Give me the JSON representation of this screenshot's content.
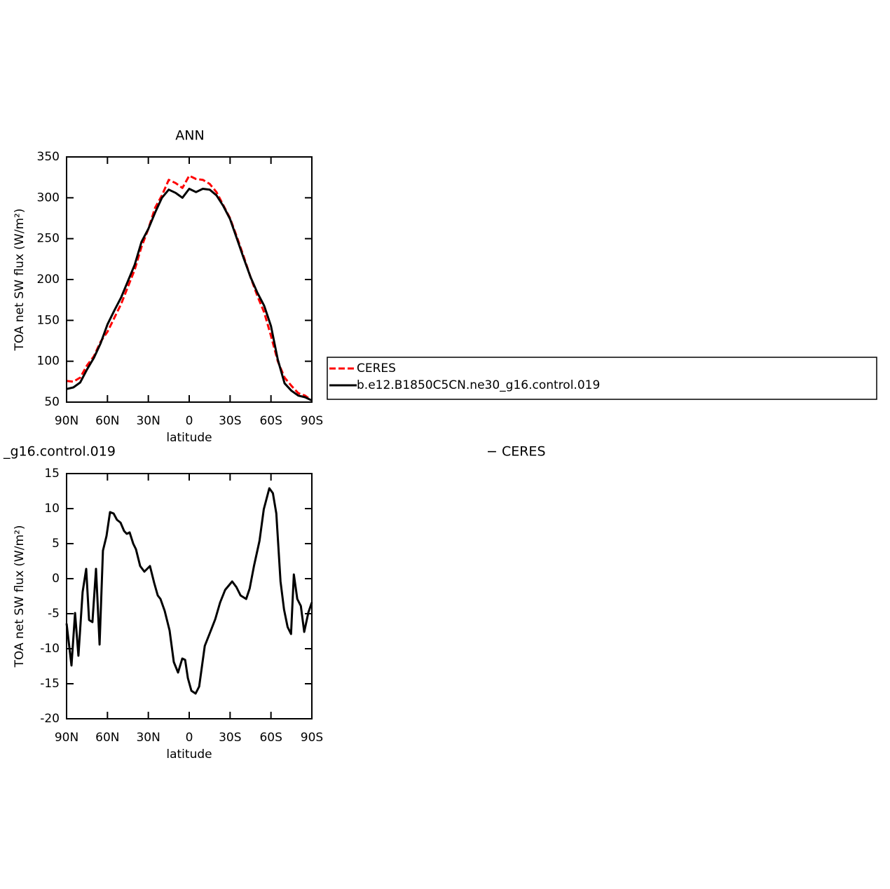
{
  "chart_data": [
    {
      "type": "line",
      "title": "ANN",
      "ylabel": "TOA net SW flux (W/m²)",
      "xlabel": "latitude",
      "x": [
        90,
        85,
        80,
        75,
        70,
        65,
        60,
        55,
        50,
        45,
        40,
        35,
        30,
        25,
        20,
        15,
        10,
        5,
        0,
        -5,
        -10,
        -15,
        -20,
        -25,
        -30,
        -35,
        -40,
        -45,
        -50,
        -55,
        -60,
        -65,
        -70,
        -75,
        -80,
        -85,
        -90
      ],
      "xlim": [
        90,
        -90
      ],
      "xticks": [
        {
          "value": 90,
          "label": "90N"
        },
        {
          "value": 60,
          "label": "60N"
        },
        {
          "value": 30,
          "label": "30N"
        },
        0,
        {
          "value": -30,
          "label": "30S"
        },
        {
          "value": -60,
          "label": "60S"
        },
        {
          "value": -90,
          "label": "90S"
        }
      ],
      "ylim": [
        50,
        350
      ],
      "yticks": [
        50,
        100,
        150,
        200,
        250,
        300,
        350
      ],
      "legend": "right",
      "series": [
        {
          "name": "CERES",
          "color": "#ff0000",
          "dashed": true,
          "values": [
            76,
            75,
            80,
            95,
            106,
            124,
            136,
            153,
            170,
            191,
            212,
            240,
            262,
            288,
            303,
            322,
            318,
            312,
            327,
            323,
            322,
            317,
            307,
            291,
            275,
            252,
            228,
            203,
            180,
            160,
            131,
            100,
            80,
            70,
            61,
            58,
            52
          ]
        },
        {
          "name": "b.e12.B1850C5CN.ne30_g16.control.019",
          "color": "#000000",
          "dashed": false,
          "values": [
            66,
            68,
            74,
            90,
            104,
            122,
            145,
            162,
            178,
            198,
            218,
            246,
            262,
            282,
            300,
            310,
            306,
            300,
            311,
            307,
            311,
            310,
            303,
            290,
            274,
            250,
            226,
            203,
            184,
            168,
            143,
            102,
            73,
            64,
            58,
            56,
            52
          ]
        }
      ]
    },
    {
      "type": "line",
      "title_parts": [
        "_g16.control.019",
        "− CERES"
      ],
      "ylabel": "TOA net SW flux (W/m²)",
      "xlabel": "latitude",
      "x": [
        90,
        86.4,
        83.8,
        81.3,
        78.2,
        75.6,
        73.5,
        71.0,
        68.4,
        65.8,
        63.3,
        60.7,
        58.1,
        55.5,
        53.0,
        50.4,
        47.8,
        45.8,
        43.7,
        41.1,
        39.1,
        36.0,
        32.9,
        28.8,
        25.7,
        23.1,
        21.1,
        18.0,
        14.4,
        11.3,
        8.2,
        5.1,
        3.0,
        1.0,
        -1.6,
        -4.7,
        -7.3,
        -11.4,
        -15.5,
        -19.1,
        -22.7,
        -26.4,
        -31.5,
        -34.6,
        -37.7,
        -41.8,
        -44.4,
        -47.5,
        -51.6,
        -54.7,
        -58.8,
        -61.4,
        -63.9,
        -67.0,
        -69.6,
        -72.2,
        -74.7,
        -76.8,
        -79.3,
        -81.9,
        -84.4,
        -87.5,
        -90
      ],
      "values": [
        -6.4,
        -12.4,
        -4.9,
        -11,
        -1.9,
        1.4,
        -5.9,
        -6.2,
        1.4,
        -9.4,
        4,
        6.1,
        9.5,
        9.3,
        8.4,
        8,
        6.8,
        6.4,
        6.6,
        5,
        4.2,
        1.8,
        1,
        1.8,
        -0.6,
        -2.4,
        -2.9,
        -4.6,
        -7.4,
        -11.9,
        -13.4,
        -11.4,
        -11.6,
        -14.2,
        -16,
        -16.4,
        -15.4,
        -9.6,
        -7.6,
        -5.8,
        -3.4,
        -1.6,
        -0.4,
        -1.2,
        -2.4,
        -2.9,
        -1.4,
        1.8,
        5.4,
        9.9,
        12.9,
        12.2,
        9.3,
        -0.4,
        -4.4,
        -6.9,
        -7.9,
        0.6,
        -2.9,
        -3.9,
        -7.6,
        -4.8,
        -3.4
      ],
      "color": "#000000",
      "xlim": [
        90,
        -90
      ],
      "xticks": [
        {
          "value": 90,
          "label": "90N"
        },
        {
          "value": 60,
          "label": "60N"
        },
        {
          "value": 30,
          "label": "30N"
        },
        0,
        {
          "value": -30,
          "label": "30S"
        },
        {
          "value": -60,
          "label": "60S"
        },
        {
          "value": -90,
          "label": "90S"
        }
      ],
      "ylim": [
        -20,
        15
      ],
      "yticks": [
        -20,
        -15,
        -10,
        -5,
        0,
        5,
        10,
        15
      ]
    }
  ]
}
